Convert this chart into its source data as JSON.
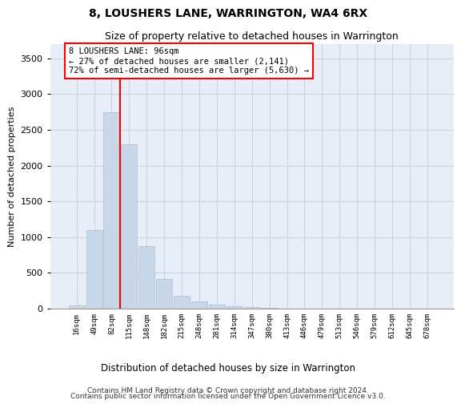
{
  "title": "8, LOUSHERS LANE, WARRINGTON, WA4 6RX",
  "subtitle": "Size of property relative to detached houses in Warrington",
  "xlabel": "Distribution of detached houses by size in Warrington",
  "ylabel": "Number of detached properties",
  "footer_line1": "Contains HM Land Registry data © Crown copyright and database right 2024.",
  "footer_line2": "Contains public sector information licensed under the Open Government Licence v3.0.",
  "bar_color": "#c8d8ea",
  "bar_edge_color": "#aabdd4",
  "grid_color": "#c8d4e4",
  "background_color": "#e8eef8",
  "annotation_text": "8 LOUSHERS LANE: 96sqm\n← 27% of detached houses are smaller (2,141)\n72% of semi-detached houses are larger (5,630) →",
  "annotation_box_color": "white",
  "annotation_border_color": "red",
  "vline_color": "red",
  "categories": [
    "16sqm",
    "49sqm",
    "82sqm",
    "115sqm",
    "148sqm",
    "182sqm",
    "215sqm",
    "248sqm",
    "281sqm",
    "314sqm",
    "347sqm",
    "380sqm",
    "413sqm",
    "446sqm",
    "479sqm",
    "513sqm",
    "546sqm",
    "579sqm",
    "612sqm",
    "645sqm",
    "678sqm"
  ],
  "values": [
    50,
    1100,
    2750,
    2300,
    880,
    420,
    175,
    100,
    55,
    30,
    18,
    10,
    5,
    4,
    2,
    1,
    1,
    0,
    0,
    0,
    0
  ],
  "ylim": [
    0,
    3700
  ],
  "yticks": [
    0,
    500,
    1000,
    1500,
    2000,
    2500,
    3000,
    3500
  ]
}
